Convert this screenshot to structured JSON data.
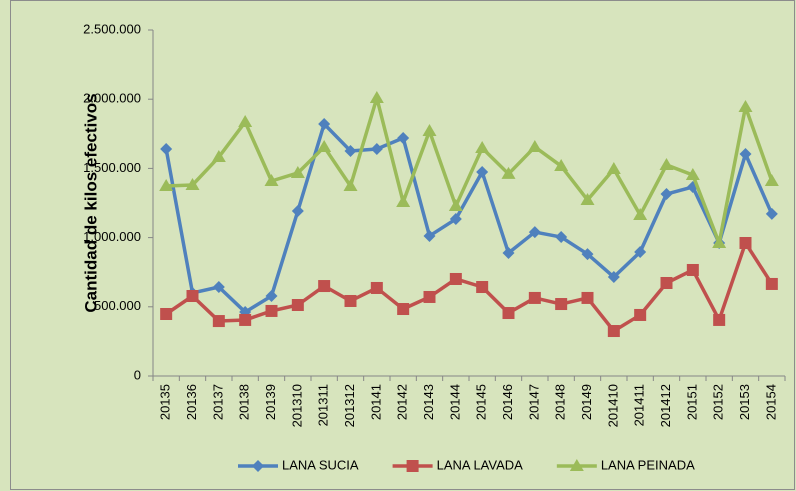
{
  "chart_data": {
    "type": "line",
    "y_label": "Cantidad de kilos efectivos",
    "categories": [
      "20135",
      "20136",
      "20137",
      "20138",
      "20139",
      "201310",
      "201311",
      "201312",
      "20141",
      "20142",
      "20143",
      "20144",
      "20145",
      "20146",
      "20147",
      "20148",
      "20149",
      "201410",
      "201411",
      "201412",
      "20151",
      "20152",
      "20153",
      "20154"
    ],
    "series": [
      {
        "name": "LANA SUCIA",
        "color": "#4f81bd",
        "marker": "diamond",
        "values": [
          1640000,
          600000,
          643000,
          462000,
          578000,
          1192000,
          1821000,
          1626000,
          1640000,
          1720000,
          1012000,
          1134000,
          1474000,
          889000,
          1040000,
          1004000,
          881000,
          715000,
          896000,
          1315000,
          1366000,
          961000,
          1604000,
          1171000
        ]
      },
      {
        "name": "LANA LAVADA",
        "color": "#c0504d",
        "marker": "square",
        "values": [
          448000,
          578000,
          397000,
          405000,
          470000,
          513000,
          650000,
          542000,
          636000,
          484000,
          571000,
          701000,
          643000,
          455000,
          564000,
          520000,
          564000,
          325000,
          441000,
          672000,
          766000,
          405000,
          961000,
          665000
        ]
      },
      {
        "name": "LANA PEINADA",
        "color": "#9bbb59",
        "marker": "triangle",
        "values": [
          1373000,
          1380000,
          1582000,
          1835000,
          1409000,
          1467000,
          1655000,
          1373000,
          2009000,
          1257000,
          1770000,
          1228000,
          1647000,
          1460000,
          1655000,
          1517000,
          1272000,
          1496000,
          1163000,
          1525000,
          1452000,
          961000,
          1944000,
          1409000
        ]
      }
    ],
    "ylim": [
      0,
      2500000
    ],
    "yticks": [
      0,
      {
        "value": 500000,
        "label": "500.000"
      },
      {
        "value": 1000000,
        "label": "1.000.000"
      },
      {
        "value": 1500000,
        "label": "1.500.000"
      },
      {
        "value": 2000000,
        "label": "2.000.000"
      },
      {
        "value": 2500000,
        "label": "2.500.000"
      }
    ],
    "legend": "bottom"
  }
}
